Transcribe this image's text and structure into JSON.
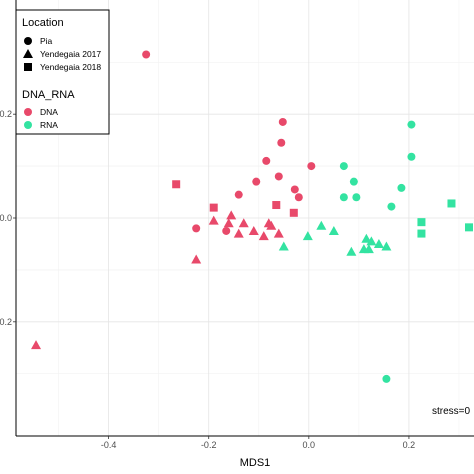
{
  "chart_data": {
    "type": "scatter",
    "title": "",
    "xlabel": "MDS1",
    "ylabel": "",
    "xlim": [
      -0.585,
      0.33
    ],
    "ylim": [
      -0.42,
      0.42
    ],
    "x_ticks": [
      -0.4,
      -0.2,
      0.0,
      0.2
    ],
    "x_tick_labels": [
      "-0.4",
      "-0.2",
      "0.0",
      "0.2"
    ],
    "y_ticks": [
      0.2,
      0.0,
      -0.2
    ],
    "y_tick_labels": [
      "0.2",
      "0.0",
      "-0.2"
    ],
    "grid": true,
    "legend_placement": "top-left",
    "annotation": "stress=0",
    "legend": {
      "shape_title": "Location",
      "shape_entries": [
        {
          "label": "Pia",
          "shape": "circle"
        },
        {
          "label": "Yendegaia 2017",
          "shape": "triangle"
        },
        {
          "label": "Yendegaia 2018",
          "shape": "square"
        }
      ],
      "color_title": "DNA_RNA",
      "color_entries": [
        {
          "label": "DNA",
          "color": "#e8496a"
        },
        {
          "label": "RNA",
          "color": "#33e3a1"
        }
      ]
    },
    "series": [
      {
        "name": "DNA",
        "color": "#e8496a",
        "points": [
          {
            "x": -0.325,
            "y": 0.315,
            "shape": "circle"
          },
          {
            "x": -0.052,
            "y": 0.185,
            "shape": "circle"
          },
          {
            "x": -0.055,
            "y": 0.145,
            "shape": "circle"
          },
          {
            "x": -0.085,
            "y": 0.11,
            "shape": "circle"
          },
          {
            "x": 0.005,
            "y": 0.1,
            "shape": "circle"
          },
          {
            "x": -0.06,
            "y": 0.08,
            "shape": "circle"
          },
          {
            "x": -0.105,
            "y": 0.07,
            "shape": "circle"
          },
          {
            "x": -0.028,
            "y": 0.055,
            "shape": "circle"
          },
          {
            "x": -0.02,
            "y": 0.04,
            "shape": "circle"
          },
          {
            "x": -0.225,
            "y": -0.02,
            "shape": "circle"
          },
          {
            "x": -0.14,
            "y": 0.045,
            "shape": "circle"
          },
          {
            "x": -0.165,
            "y": -0.025,
            "shape": "circle"
          },
          {
            "x": -0.265,
            "y": 0.065,
            "shape": "square"
          },
          {
            "x": -0.19,
            "y": 0.02,
            "shape": "square"
          },
          {
            "x": -0.065,
            "y": 0.025,
            "shape": "square"
          },
          {
            "x": -0.03,
            "y": 0.01,
            "shape": "square"
          },
          {
            "x": -0.155,
            "y": 0.005,
            "shape": "triangle"
          },
          {
            "x": -0.16,
            "y": -0.01,
            "shape": "triangle"
          },
          {
            "x": -0.19,
            "y": -0.005,
            "shape": "triangle"
          },
          {
            "x": -0.13,
            "y": -0.01,
            "shape": "triangle"
          },
          {
            "x": -0.14,
            "y": -0.03,
            "shape": "triangle"
          },
          {
            "x": -0.11,
            "y": -0.025,
            "shape": "triangle"
          },
          {
            "x": -0.08,
            "y": -0.01,
            "shape": "triangle"
          },
          {
            "x": -0.075,
            "y": -0.015,
            "shape": "triangle"
          },
          {
            "x": -0.09,
            "y": -0.035,
            "shape": "triangle"
          },
          {
            "x": -0.06,
            "y": -0.03,
            "shape": "triangle"
          },
          {
            "x": -0.225,
            "y": -0.08,
            "shape": "triangle"
          },
          {
            "x": -0.545,
            "y": -0.245,
            "shape": "triangle"
          }
        ]
      },
      {
        "name": "RNA",
        "color": "#33e3a1",
        "points": [
          {
            "x": 0.205,
            "y": 0.18,
            "shape": "circle"
          },
          {
            "x": 0.205,
            "y": 0.118,
            "shape": "circle"
          },
          {
            "x": 0.07,
            "y": 0.1,
            "shape": "circle"
          },
          {
            "x": 0.09,
            "y": 0.07,
            "shape": "circle"
          },
          {
            "x": 0.185,
            "y": 0.058,
            "shape": "circle"
          },
          {
            "x": 0.07,
            "y": 0.04,
            "shape": "circle"
          },
          {
            "x": 0.095,
            "y": 0.04,
            "shape": "circle"
          },
          {
            "x": 0.165,
            "y": 0.022,
            "shape": "circle"
          },
          {
            "x": 0.155,
            "y": -0.31,
            "shape": "circle"
          },
          {
            "x": 0.285,
            "y": 0.028,
            "shape": "square"
          },
          {
            "x": 0.225,
            "y": -0.008,
            "shape": "square"
          },
          {
            "x": 0.225,
            "y": -0.03,
            "shape": "square"
          },
          {
            "x": 0.32,
            "y": -0.018,
            "shape": "square"
          },
          {
            "x": 0.025,
            "y": -0.015,
            "shape": "triangle"
          },
          {
            "x": 0.05,
            "y": -0.025,
            "shape": "triangle"
          },
          {
            "x": -0.002,
            "y": -0.035,
            "shape": "triangle"
          },
          {
            "x": -0.05,
            "y": -0.055,
            "shape": "triangle"
          },
          {
            "x": 0.115,
            "y": -0.04,
            "shape": "triangle"
          },
          {
            "x": 0.125,
            "y": -0.045,
            "shape": "triangle"
          },
          {
            "x": 0.14,
            "y": -0.05,
            "shape": "triangle"
          },
          {
            "x": 0.155,
            "y": -0.055,
            "shape": "triangle"
          },
          {
            "x": 0.085,
            "y": -0.065,
            "shape": "triangle"
          },
          {
            "x": 0.11,
            "y": -0.06,
            "shape": "triangle"
          },
          {
            "x": 0.12,
            "y": -0.06,
            "shape": "triangle"
          }
        ]
      }
    ]
  }
}
